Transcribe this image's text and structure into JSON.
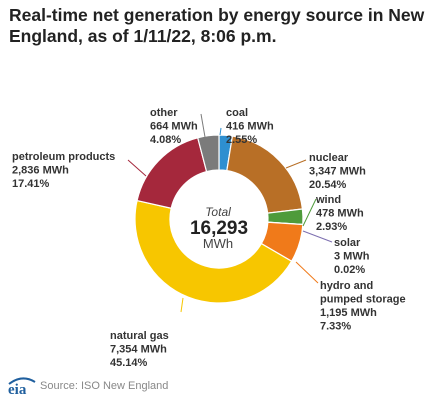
{
  "title": "Real-time net generation by energy source in New England, as of 1/11/22, 8:06 p.m.",
  "center": {
    "caption": "Total",
    "value": "16,293",
    "unit": "MWh"
  },
  "source": "Source: ISO New England",
  "logo_text": "eia",
  "chart_data": {
    "type": "pie",
    "donut": true,
    "title": "Real-time net generation by energy source in New England, as of 1/11/22, 8:06 p.m.",
    "total": 16293,
    "unit": "MWh",
    "series": [
      {
        "name": "coal",
        "value": 416,
        "value_label": "416 MWh",
        "percent_label": "2.55%",
        "color": "#2e8fd0"
      },
      {
        "name": "nuclear",
        "value": 3347,
        "value_label": "3,347 MWh",
        "percent_label": "20.54%",
        "color": "#b86f26"
      },
      {
        "name": "wind",
        "value": 478,
        "value_label": "478 MWh",
        "percent_label": "2.93%",
        "color": "#4e9b3b"
      },
      {
        "name": "solar",
        "value": 3,
        "value_label": "3 MWh",
        "percent_label": "0.02%",
        "color": "#7d6fb0"
      },
      {
        "name": "hydro and pumped storage",
        "value": 1195,
        "value_label": "1,195 MWh",
        "percent_label": "7.33%",
        "color": "#f07a1a"
      },
      {
        "name": "natural gas",
        "value": 7354,
        "value_label": "7,354 MWh",
        "percent_label": "45.14%",
        "color": "#f7c600"
      },
      {
        "name": "petroleum products",
        "value": 2836,
        "value_label": "2,836 MWh",
        "percent_label": "17.41%",
        "color": "#a5283c"
      },
      {
        "name": "other",
        "value": 664,
        "value_label": "664 MWh",
        "percent_label": "4.08%",
        "color": "#7b7b7b"
      }
    ]
  }
}
